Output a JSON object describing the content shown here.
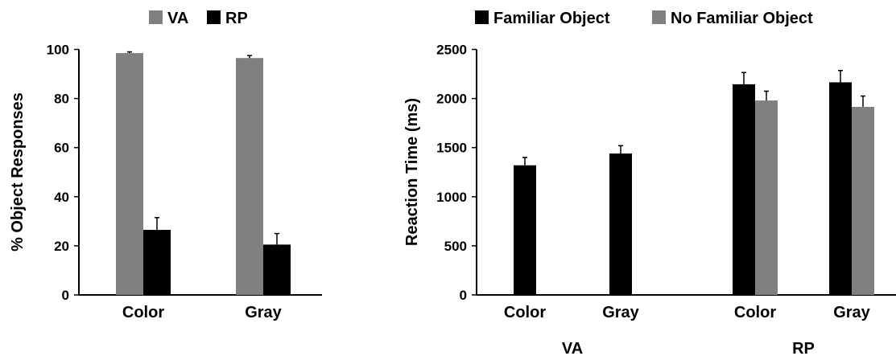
{
  "chart_data": [
    {
      "type": "bar",
      "title": "",
      "xlabel": "",
      "ylabel": "% Object Responses",
      "ylim": [
        0,
        100
      ],
      "yticks": [
        0,
        20,
        40,
        60,
        80,
        100
      ],
      "grid": false,
      "legend_position": "top-center",
      "categories": [
        "Color",
        "Gray"
      ],
      "series": [
        {
          "name": "VA",
          "color": "#808080",
          "values": [
            98.5,
            96.5
          ],
          "errors": [
            0.5,
            1.0
          ]
        },
        {
          "name": "RP",
          "color": "#000000",
          "values": [
            26.5,
            20.5
          ],
          "errors": [
            5.0,
            4.5
          ]
        }
      ]
    },
    {
      "type": "bar",
      "title": "",
      "xlabel": "",
      "ylabel": "Reaction Time (ms)",
      "ylim": [
        0,
        2500
      ],
      "yticks": [
        0,
        500,
        1000,
        1500,
        2000,
        2500
      ],
      "grid": false,
      "legend_position": "top-center",
      "groups": [
        {
          "label": "VA",
          "categories": [
            "Color",
            "Gray"
          ]
        },
        {
          "label": "RP",
          "categories": [
            "Color",
            "Gray"
          ]
        }
      ],
      "categories": [
        "Color",
        "Gray",
        "Color",
        "Gray"
      ],
      "series": [
        {
          "name": "Familiar Object",
          "color": "#000000",
          "values": [
            1320,
            1440,
            2145,
            2165
          ],
          "errors": [
            80,
            80,
            120,
            120
          ]
        },
        {
          "name": "No Familiar Object",
          "color": "#808080",
          "values": [
            null,
            null,
            1980,
            1915
          ],
          "errors": [
            null,
            null,
            95,
            110
          ]
        }
      ]
    }
  ]
}
